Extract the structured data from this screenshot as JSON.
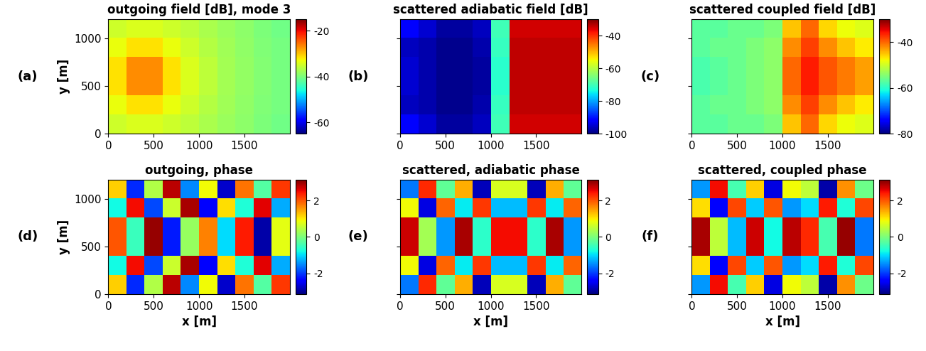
{
  "chart_data": [
    {
      "type": "heatmap",
      "panel": "(a)",
      "title": "outgoing field [dB], mode 3",
      "ylabel": "y [m]",
      "xlim": [
        0,
        2000
      ],
      "ylim": [
        0,
        1200
      ],
      "xticks": [
        0,
        500,
        1000,
        1500
      ],
      "yticks": [
        0,
        500,
        1000
      ],
      "tick_labels": true,
      "cells": [
        [
          -35,
          -34.2,
          -34.2,
          -35,
          -36,
          -37.1,
          -38.2,
          -39,
          -39.9,
          -40.6
        ],
        [
          -33.2,
          -31.5,
          -31.5,
          -33.2,
          -35,
          -36.5,
          -37.7,
          -38.8,
          -39.7,
          -40.3
        ],
        [
          -31.5,
          -27,
          -27,
          -31.5,
          -34.2,
          -36,
          -37.5,
          -38.5,
          -39.5,
          -40.3
        ],
        [
          -31.5,
          -27,
          -27,
          -31.5,
          -34.2,
          -36,
          -37.5,
          -38.5,
          -39.5,
          -40.3
        ],
        [
          -33.2,
          -31.5,
          -31.5,
          -33.2,
          -35,
          -36.5,
          -37.7,
          -38.8,
          -39.7,
          -40.3
        ],
        [
          -35,
          -34.2,
          -34.2,
          -35,
          -36,
          -37.1,
          -38.2,
          -39,
          -39.9,
          -40.6
        ]
      ],
      "colorbar": {
        "range": [
          -65,
          -15
        ],
        "ticks": [
          -60,
          -40,
          -20
        ]
      }
    },
    {
      "type": "heatmap",
      "panel": "(b)",
      "title": "scattered adiabatic field [dB]",
      "xlim": [
        0,
        2000
      ],
      "ylim": [
        0,
        1200
      ],
      "xticks": [
        0,
        500,
        1000,
        1500
      ],
      "yticks": [
        0,
        500,
        1000
      ],
      "tick_labels": "x",
      "cells": [
        [
          -92,
          -95,
          -98,
          -98,
          -96,
          -70,
          -35,
          -35,
          -35,
          -35
        ],
        [
          -96,
          -97,
          -99,
          -99,
          -97,
          -71,
          -34,
          -34,
          -34,
          -34
        ],
        [
          -95,
          -97,
          -99,
          -99,
          -98,
          -72,
          -34,
          -34,
          -34,
          -34
        ],
        [
          -95,
          -97,
          -99,
          -99,
          -98,
          -72,
          -34,
          -34,
          -34,
          -34
        ],
        [
          -96,
          -97,
          -99,
          -99,
          -97,
          -71,
          -34,
          -34,
          -34,
          -34
        ],
        [
          -92,
          -95,
          -98,
          -98,
          -96,
          -70,
          -35,
          -35,
          -35,
          -35
        ]
      ],
      "colorbar": {
        "range": [
          -100,
          -30
        ],
        "ticks": [
          -100,
          -80,
          -60,
          -40
        ]
      }
    },
    {
      "type": "heatmap",
      "panel": "(c)",
      "title": "scattered coupled field [dB]",
      "xlim": [
        0,
        2000
      ],
      "ylim": [
        0,
        1200
      ],
      "xticks": [
        0,
        500,
        1000,
        1500
      ],
      "yticks": [
        0,
        500,
        1000
      ],
      "tick_labels": "x",
      "cells": [
        [
          -57,
          -57,
          -56,
          -56,
          -55,
          -45,
          -40,
          -46,
          -48,
          -49
        ],
        [
          -57,
          -56,
          -56,
          -55,
          -54,
          -42,
          -38,
          -42,
          -45,
          -47
        ],
        [
          -58,
          -57,
          -56,
          -55,
          -54,
          -40,
          -36,
          -39,
          -41,
          -43
        ],
        [
          -58,
          -57,
          -56,
          -55,
          -54,
          -40,
          -36,
          -39,
          -41,
          -43
        ],
        [
          -57,
          -56,
          -56,
          -55,
          -54,
          -42,
          -38,
          -42,
          -45,
          -47
        ],
        [
          -57,
          -57,
          -56,
          -56,
          -55,
          -45,
          -40,
          -46,
          -48,
          -49
        ]
      ],
      "colorbar": {
        "range": [
          -80,
          -30
        ],
        "ticks": [
          -80,
          -60,
          -40
        ]
      }
    },
    {
      "type": "heatmap",
      "panel": "(d)",
      "title": "outgoing, phase",
      "xlabel": "x [m]",
      "ylabel": "y [m]",
      "xlim": [
        0,
        2000
      ],
      "ylim": [
        0,
        1200
      ],
      "xticks": [
        0,
        500,
        1000,
        1500
      ],
      "yticks": [
        0,
        500,
        1000
      ],
      "tick_labels": true,
      "cells": [
        [
          1.2,
          -2.1,
          0.4,
          2.8,
          -1.5,
          0.9,
          -2.7,
          1.8,
          -0.3,
          2.2
        ],
        [
          -0.8,
          2.5,
          -1.9,
          0.6,
          2.9,
          -2.4,
          1.1,
          -0.7,
          2.6,
          -1.3
        ],
        [
          2.0,
          -0.5,
          3.0,
          -2.2,
          0.2,
          1.7,
          -1.0,
          2.4,
          -2.9,
          0.8
        ],
        [
          2.0,
          -0.5,
          3.0,
          -2.2,
          0.2,
          1.7,
          -1.0,
          2.4,
          -2.9,
          0.8
        ],
        [
          -0.8,
          2.5,
          -1.9,
          0.6,
          2.9,
          -2.4,
          1.1,
          -0.7,
          2.6,
          -1.3
        ],
        [
          1.2,
          -2.1,
          0.4,
          2.8,
          -1.5,
          0.9,
          -2.7,
          1.8,
          -0.3,
          2.2
        ]
      ],
      "colorbar": {
        "range": [
          -3.1416,
          3.1416
        ],
        "ticks": [
          -2,
          0,
          2
        ]
      }
    },
    {
      "type": "heatmap",
      "panel": "(e)",
      "title": "scattered, adiabatic phase",
      "xlabel": "x [m]",
      "xlim": [
        0,
        2000
      ],
      "ylim": [
        0,
        1200
      ],
      "xticks": [
        0,
        500,
        1000,
        1500
      ],
      "yticks": [
        0,
        500,
        1000
      ],
      "tick_labels": "x",
      "cells": [
        [
          -1.6,
          2.3,
          -0.2,
          1.4,
          -2.8,
          0.7,
          0.7,
          -2.8,
          1.4,
          -0.2
        ],
        [
          0.9,
          -2.6,
          1.9,
          -0.9,
          2.2,
          -1.2,
          -1.2,
          2.2,
          -0.9,
          1.9
        ],
        [
          2.7,
          0.3,
          -1.4,
          2.9,
          -0.6,
          2.5,
          2.5,
          -0.6,
          2.9,
          -1.4
        ],
        [
          2.7,
          0.3,
          -1.4,
          2.9,
          -0.6,
          2.5,
          2.5,
          -0.6,
          2.9,
          -1.4
        ],
        [
          0.9,
          -2.6,
          1.9,
          -0.9,
          2.2,
          -1.2,
          -1.2,
          2.2,
          -0.9,
          1.9
        ],
        [
          -1.6,
          2.3,
          -0.2,
          1.4,
          -2.8,
          0.7,
          0.7,
          -2.8,
          1.4,
          -0.2
        ]
      ],
      "colorbar": {
        "range": [
          -3.1416,
          3.1416
        ],
        "ticks": [
          -2,
          0,
          2
        ]
      }
    },
    {
      "type": "heatmap",
      "panel": "(f)",
      "title": "scattered, coupled phase",
      "xlabel": "x [m]",
      "xlim": [
        0,
        2000
      ],
      "ylim": [
        0,
        1200
      ],
      "xticks": [
        0,
        500,
        1000,
        1500
      ],
      "yticks": [
        0,
        500,
        1000
      ],
      "tick_labels": "x",
      "cells": [
        [
          -1.4,
          2.5,
          -0.4,
          1.2,
          -2.6,
          0.9,
          0.5,
          -2.9,
          1.6,
          -0.1
        ],
        [
          1.1,
          -2.4,
          2.1,
          -1.1,
          2.0,
          -1.4,
          -1.0,
          2.4,
          -0.7,
          2.1
        ],
        [
          2.9,
          0.5,
          -1.2,
          2.7,
          -0.8,
          2.8,
          2.3,
          -0.4,
          3.0,
          -1.6
        ],
        [
          2.9,
          0.5,
          -1.2,
          2.7,
          -0.8,
          2.8,
          2.3,
          -0.4,
          3.0,
          -1.6
        ],
        [
          1.1,
          -2.4,
          2.1,
          -1.1,
          2.0,
          -1.4,
          -1.0,
          2.4,
          -0.7,
          2.1
        ],
        [
          -1.4,
          2.5,
          -0.4,
          1.2,
          -2.6,
          0.9,
          0.5,
          -2.9,
          1.6,
          -0.1
        ]
      ],
      "colorbar": {
        "range": [
          -3.1416,
          3.1416
        ],
        "ticks": [
          -2,
          0,
          2
        ]
      }
    }
  ]
}
